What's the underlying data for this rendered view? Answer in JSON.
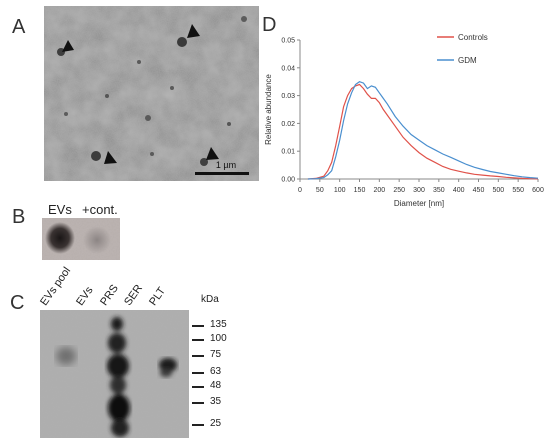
{
  "panels": {
    "a": "A",
    "b": "B",
    "c": "C",
    "d": "D"
  },
  "panel_a": {
    "scale_bar": "1 µm"
  },
  "panel_b": {
    "lanes": [
      "EVs",
      "+cont."
    ]
  },
  "panel_c": {
    "lanes": [
      "EVs pool",
      "EVs",
      "PRS",
      "SER",
      "PLT"
    ],
    "unit": "kDa",
    "markers": [
      "135",
      "100",
      "75",
      "63",
      "48",
      "35",
      "25"
    ]
  },
  "chart_data": {
    "type": "line",
    "title": "",
    "xlabel": "Diameter [nm]",
    "ylabel": "Relative abundance",
    "xlim": [
      0,
      600
    ],
    "ylim": [
      0,
      0.05
    ],
    "xticks": [
      "0",
      "50",
      "100",
      "150",
      "200",
      "250",
      "300",
      "350",
      "400",
      "450",
      "500",
      "550",
      "600"
    ],
    "yticks": [
      "0.00",
      "0.01",
      "0.02",
      "0.03",
      "0.04",
      "0.05"
    ],
    "grid": false,
    "legend_position": "top-right",
    "series": [
      {
        "name": "Controls",
        "color": "#e0524a",
        "x": [
          20,
          40,
          60,
          70,
          80,
          90,
          100,
          110,
          120,
          130,
          140,
          150,
          160,
          170,
          180,
          190,
          200,
          210,
          220,
          240,
          260,
          280,
          300,
          320,
          340,
          360,
          380,
          400,
          420,
          440,
          460,
          480,
          500,
          520,
          540,
          560,
          580,
          600
        ],
        "y": [
          0,
          0.0002,
          0.001,
          0.003,
          0.006,
          0.012,
          0.019,
          0.026,
          0.03,
          0.0325,
          0.0335,
          0.034,
          0.0325,
          0.0305,
          0.029,
          0.029,
          0.0275,
          0.025,
          0.023,
          0.019,
          0.015,
          0.012,
          0.0095,
          0.0075,
          0.006,
          0.0045,
          0.0035,
          0.0028,
          0.0022,
          0.0017,
          0.0014,
          0.0011,
          0.0009,
          0.0006,
          0.0004,
          0.0002,
          0.0001,
          5e-05
        ]
      },
      {
        "name": "GDM",
        "color": "#4a8fcf",
        "x": [
          20,
          40,
          60,
          70,
          80,
          90,
          100,
          110,
          120,
          130,
          140,
          150,
          160,
          170,
          180,
          190,
          200,
          210,
          220,
          240,
          260,
          280,
          300,
          320,
          340,
          360,
          380,
          400,
          420,
          440,
          460,
          480,
          500,
          520,
          540,
          560,
          580,
          600
        ],
        "y": [
          0,
          0.0001,
          0.0005,
          0.0015,
          0.003,
          0.008,
          0.014,
          0.021,
          0.027,
          0.031,
          0.034,
          0.035,
          0.0345,
          0.0325,
          0.0335,
          0.033,
          0.031,
          0.029,
          0.027,
          0.0225,
          0.019,
          0.016,
          0.014,
          0.012,
          0.0105,
          0.009,
          0.0078,
          0.0065,
          0.0052,
          0.0042,
          0.0034,
          0.0027,
          0.0022,
          0.0017,
          0.0012,
          0.0008,
          0.0005,
          0.0003
        ]
      }
    ]
  }
}
